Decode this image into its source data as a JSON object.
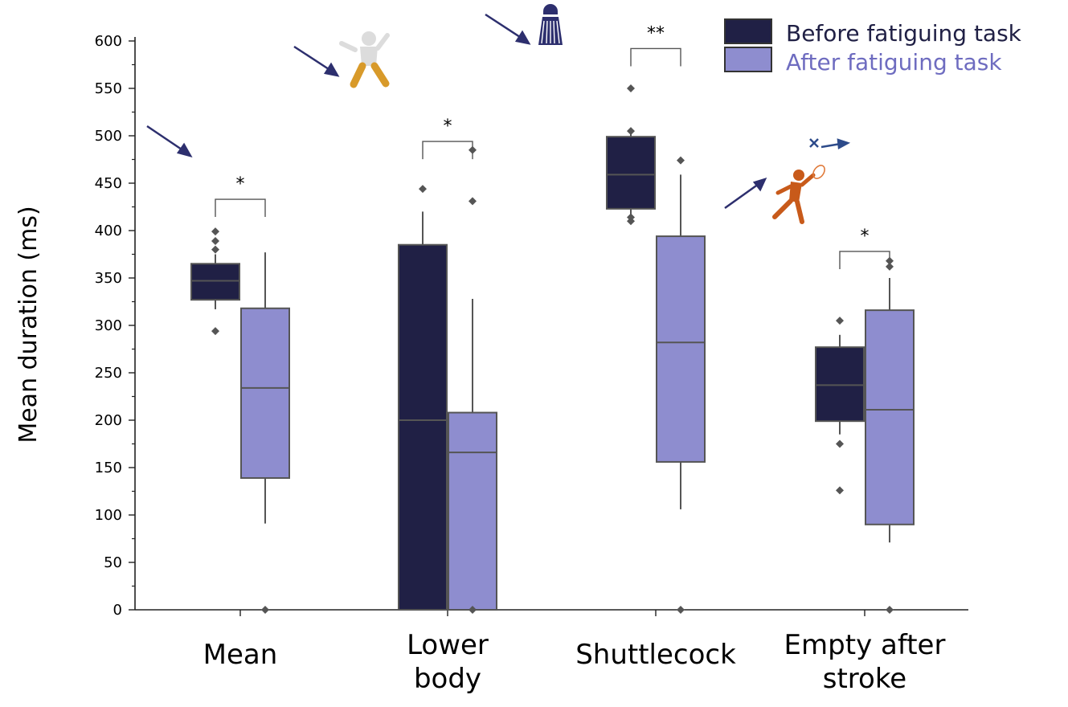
{
  "chart_data": {
    "type": "box",
    "ylabel": "Mean duration (ms)",
    "ylim": [
      0,
      600
    ],
    "yticks": [
      0,
      50,
      100,
      150,
      200,
      250,
      300,
      350,
      400,
      450,
      500,
      550,
      600
    ],
    "categories": [
      {
        "id": "mean",
        "lines": [
          "Mean"
        ]
      },
      {
        "id": "lower-body",
        "lines": [
          "Lower",
          "body"
        ]
      },
      {
        "id": "shuttlecock",
        "lines": [
          "Shuttlecock"
        ]
      },
      {
        "id": "empty-after-stroke",
        "lines": [
          "Empty after",
          "stroke"
        ]
      }
    ],
    "series": [
      {
        "name": "Before fatiguing task",
        "color": "#202045",
        "text_color": "#202045",
        "boxes": [
          {
            "q1": 327,
            "median": 347,
            "q3": 365,
            "whisker_low": 317,
            "whisker_high": 375,
            "outliers": [
              294,
              380,
              389,
              399
            ]
          },
          {
            "q1": 0,
            "median": 200,
            "q3": 385,
            "whisker_low": 0,
            "whisker_high": 420,
            "outliers": [
              444
            ]
          },
          {
            "q1": 423,
            "median": 459,
            "q3": 499,
            "whisker_low": 415,
            "whisker_high": 503,
            "outliers": [
              410,
              414,
              505,
              550
            ]
          },
          {
            "q1": 199,
            "median": 237,
            "q3": 277,
            "whisker_low": 185,
            "whisker_high": 290,
            "outliers": [
              126,
              175,
              305
            ]
          }
        ]
      },
      {
        "name": "After fatiguing task",
        "color": "#8e8dcf",
        "text_color": "#6e6cc0",
        "boxes": [
          {
            "q1": 139,
            "median": 234,
            "q3": 318,
            "whisker_low": 91,
            "whisker_high": 377,
            "outliers": [
              0
            ]
          },
          {
            "q1": 0,
            "median": 166,
            "q3": 208,
            "whisker_low": 0,
            "whisker_high": 328,
            "outliers": [
              0,
              431,
              485
            ]
          },
          {
            "q1": 156,
            "median": 282,
            "q3": 394,
            "whisker_low": 106,
            "whisker_high": 459,
            "outliers": [
              0,
              474
            ]
          },
          {
            "q1": 90,
            "median": 211,
            "q3": 316,
            "whisker_low": 71,
            "whisker_high": 350,
            "outliers": [
              0,
              362,
              368
            ]
          }
        ]
      }
    ],
    "significance": [
      {
        "category": "mean",
        "label": "*",
        "y": 433
      },
      {
        "category": "lower-body",
        "label": "*",
        "y": 494
      },
      {
        "category": "shuttlecock",
        "label": "**",
        "y": 592
      },
      {
        "category": "empty-after-stroke",
        "label": "*",
        "y": 378
      }
    ],
    "legend": {
      "position": "top-right"
    },
    "icons": [
      "arrow-icon",
      "player-body-icon",
      "shuttlecock-icon",
      "racket-player-icon",
      "move-arrow-icon"
    ]
  }
}
